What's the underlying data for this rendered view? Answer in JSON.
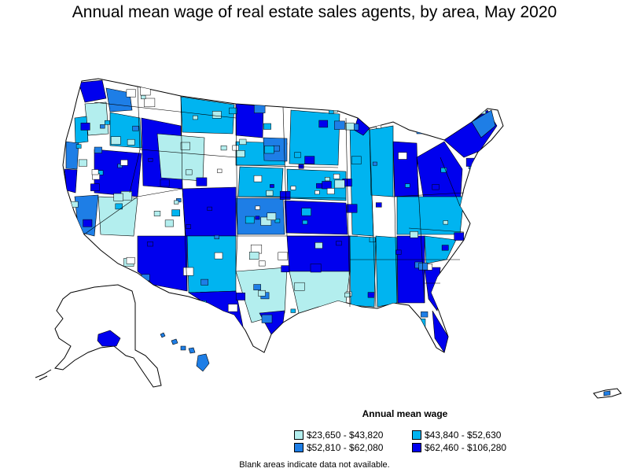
{
  "title": "Annual mean wage of real estate sales agents, by area, May 2020",
  "legend": {
    "title": "Annual mean wage",
    "items": [
      {
        "label": "$23,650 - $43,820",
        "color": "#b3eeee"
      },
      {
        "label": "$43,840 - $52,630",
        "color": "#00b4f0"
      },
      {
        "label": "$52,810 - $62,080",
        "color": "#1e7ee6"
      },
      {
        "label": "$62,460 - $106,280",
        "color": "#0000ee"
      }
    ]
  },
  "footnote": "Blank areas indicate data not available.",
  "colors": {
    "no_data": "#ffffff",
    "border": "#000000"
  }
}
